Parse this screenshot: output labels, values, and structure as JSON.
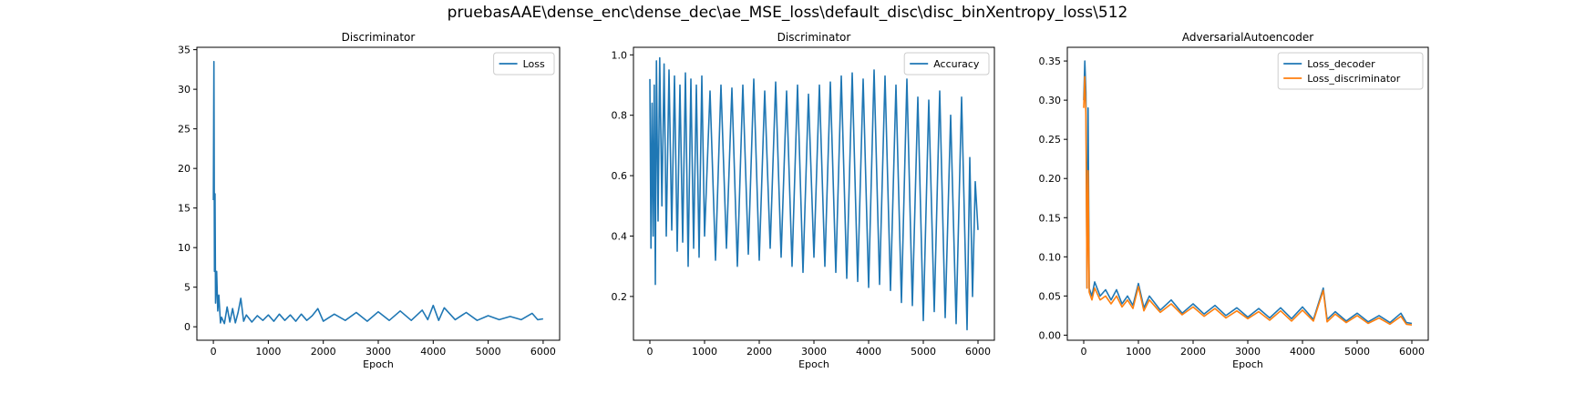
{
  "figure": {
    "suptitle": "pruebasAAE\\dense_enc\\dense_dec\\ae_MSE_loss\\default_disc\\disc_binXentropy_loss\\512"
  },
  "colors": {
    "series_blue": "#1f77b4",
    "series_orange": "#ff7f0e",
    "axes": "#000000",
    "legend_border": "#cccccc"
  },
  "chart_data": [
    {
      "type": "line",
      "title": "Discriminator",
      "xlabel": "Epoch",
      "ylabel": "",
      "xlim": [
        -300,
        6300
      ],
      "ylim": [
        -1.7,
        35.3
      ],
      "xticks": [
        0,
        1000,
        2000,
        3000,
        4000,
        5000,
        6000
      ],
      "yticks": [
        0,
        5,
        10,
        15,
        20,
        25,
        30,
        35
      ],
      "legend": "top-right",
      "grid": false,
      "series": [
        {
          "name": "Loss",
          "color": "#1f77b4",
          "points": [
            [
              0,
              16
            ],
            [
              10,
              33.5
            ],
            [
              20,
              7
            ],
            [
              30,
              16.8
            ],
            [
              40,
              3
            ],
            [
              60,
              7
            ],
            [
              80,
              2
            ],
            [
              100,
              4
            ],
            [
              130,
              0.5
            ],
            [
              150,
              1.2
            ],
            [
              200,
              0.4
            ],
            [
              250,
              2.5
            ],
            [
              300,
              0.6
            ],
            [
              350,
              2.3
            ],
            [
              400,
              0.5
            ],
            [
              450,
              1.8
            ],
            [
              500,
              3.6
            ],
            [
              550,
              0.7
            ],
            [
              600,
              1.5
            ],
            [
              700,
              0.6
            ],
            [
              800,
              1.4
            ],
            [
              900,
              0.8
            ],
            [
              1000,
              1.5
            ],
            [
              1100,
              0.7
            ],
            [
              1200,
              1.6
            ],
            [
              1300,
              0.8
            ],
            [
              1400,
              1.5
            ],
            [
              1500,
              0.7
            ],
            [
              1600,
              1.6
            ],
            [
              1700,
              0.8
            ],
            [
              1800,
              1.4
            ],
            [
              1900,
              2.3
            ],
            [
              2000,
              0.7
            ],
            [
              2200,
              1.6
            ],
            [
              2400,
              0.8
            ],
            [
              2600,
              1.8
            ],
            [
              2800,
              0.7
            ],
            [
              3000,
              1.9
            ],
            [
              3200,
              0.8
            ],
            [
              3400,
              2
            ],
            [
              3600,
              0.8
            ],
            [
              3800,
              2.1
            ],
            [
              3900,
              0.9
            ],
            [
              4000,
              2.7
            ],
            [
              4100,
              0.8
            ],
            [
              4200,
              2.4
            ],
            [
              4400,
              0.9
            ],
            [
              4600,
              1.8
            ],
            [
              4800,
              0.8
            ],
            [
              5000,
              1.4
            ],
            [
              5200,
              0.9
            ],
            [
              5400,
              1.3
            ],
            [
              5600,
              0.9
            ],
            [
              5800,
              1.7
            ],
            [
              5900,
              0.9
            ],
            [
              6000,
              1
            ]
          ]
        }
      ]
    },
    {
      "type": "line",
      "title": "Discriminator",
      "xlabel": "Epoch",
      "ylabel": "",
      "xlim": [
        -300,
        6300
      ],
      "ylim": [
        0.055,
        1.025
      ],
      "xticks": [
        0,
        1000,
        2000,
        3000,
        4000,
        5000,
        6000
      ],
      "yticks": [
        0.2,
        0.4,
        0.6,
        0.8,
        1.0
      ],
      "legend": "top-right",
      "grid": false,
      "series": [
        {
          "name": "Accuracy",
          "color": "#1f77b4",
          "points": [
            [
              0,
              0.92
            ],
            [
              20,
              0.36
            ],
            [
              40,
              0.84
            ],
            [
              60,
              0.4
            ],
            [
              80,
              0.9
            ],
            [
              100,
              0.24
            ],
            [
              120,
              0.98
            ],
            [
              150,
              0.45
            ],
            [
              180,
              0.99
            ],
            [
              220,
              0.5
            ],
            [
              260,
              0.97
            ],
            [
              300,
              0.4
            ],
            [
              350,
              0.95
            ],
            [
              400,
              0.42
            ],
            [
              450,
              0.93
            ],
            [
              500,
              0.35
            ],
            [
              550,
              0.9
            ],
            [
              600,
              0.38
            ],
            [
              650,
              0.94
            ],
            [
              700,
              0.3
            ],
            [
              750,
              0.92
            ],
            [
              800,
              0.36
            ],
            [
              850,
              0.9
            ],
            [
              900,
              0.33
            ],
            [
              950,
              0.93
            ],
            [
              1000,
              0.4
            ],
            [
              1100,
              0.88
            ],
            [
              1200,
              0.32
            ],
            [
              1300,
              0.9
            ],
            [
              1400,
              0.36
            ],
            [
              1500,
              0.89
            ],
            [
              1600,
              0.3
            ],
            [
              1700,
              0.9
            ],
            [
              1800,
              0.34
            ],
            [
              1900,
              0.92
            ],
            [
              2000,
              0.32
            ],
            [
              2100,
              0.88
            ],
            [
              2200,
              0.36
            ],
            [
              2300,
              0.91
            ],
            [
              2400,
              0.33
            ],
            [
              2500,
              0.88
            ],
            [
              2600,
              0.3
            ],
            [
              2700,
              0.9
            ],
            [
              2800,
              0.28
            ],
            [
              2900,
              0.87
            ],
            [
              3000,
              0.33
            ],
            [
              3100,
              0.9
            ],
            [
              3200,
              0.3
            ],
            [
              3300,
              0.91
            ],
            [
              3400,
              0.28
            ],
            [
              3500,
              0.93
            ],
            [
              3600,
              0.26
            ],
            [
              3700,
              0.94
            ],
            [
              3800,
              0.25
            ],
            [
              3900,
              0.92
            ],
            [
              4000,
              0.23
            ],
            [
              4100,
              0.95
            ],
            [
              4200,
              0.24
            ],
            [
              4300,
              0.93
            ],
            [
              4400,
              0.22
            ],
            [
              4500,
              0.9
            ],
            [
              4600,
              0.18
            ],
            [
              4700,
              0.92
            ],
            [
              4800,
              0.17
            ],
            [
              4900,
              0.86
            ],
            [
              5000,
              0.12
            ],
            [
              5100,
              0.85
            ],
            [
              5200,
              0.15
            ],
            [
              5300,
              0.88
            ],
            [
              5400,
              0.13
            ],
            [
              5500,
              0.8
            ],
            [
              5600,
              0.11
            ],
            [
              5700,
              0.86
            ],
            [
              5800,
              0.09
            ],
            [
              5850,
              0.66
            ],
            [
              5900,
              0.2
            ],
            [
              5950,
              0.58
            ],
            [
              6000,
              0.42
            ]
          ]
        }
      ]
    },
    {
      "type": "line",
      "title": "AdversarialAutoencoder",
      "xlabel": "Epoch",
      "ylabel": "",
      "xlim": [
        -300,
        6300
      ],
      "ylim": [
        -0.0065,
        0.3675
      ],
      "xticks": [
        0,
        1000,
        2000,
        3000,
        4000,
        5000,
        6000
      ],
      "yticks": [
        0.0,
        0.05,
        0.1,
        0.15,
        0.2,
        0.25,
        0.3,
        0.35
      ],
      "legend": "top-right",
      "grid": false,
      "series": [
        {
          "name": "Loss_decoder",
          "color": "#1f77b4",
          "points": [
            [
              0,
              0.3
            ],
            [
              20,
              0.35
            ],
            [
              40,
              0.31
            ],
            [
              60,
              0.06
            ],
            [
              80,
              0.29
            ],
            [
              100,
              0.06
            ],
            [
              150,
              0.05
            ],
            [
              200,
              0.068
            ],
            [
              300,
              0.05
            ],
            [
              400,
              0.058
            ],
            [
              500,
              0.045
            ],
            [
              600,
              0.058
            ],
            [
              700,
              0.04
            ],
            [
              800,
              0.05
            ],
            [
              900,
              0.038
            ],
            [
              1000,
              0.066
            ],
            [
              1100,
              0.035
            ],
            [
              1200,
              0.05
            ],
            [
              1400,
              0.032
            ],
            [
              1600,
              0.045
            ],
            [
              1800,
              0.028
            ],
            [
              2000,
              0.04
            ],
            [
              2200,
              0.027
            ],
            [
              2400,
              0.038
            ],
            [
              2600,
              0.025
            ],
            [
              2800,
              0.035
            ],
            [
              3000,
              0.023
            ],
            [
              3200,
              0.034
            ],
            [
              3400,
              0.022
            ],
            [
              3600,
              0.035
            ],
            [
              3800,
              0.021
            ],
            [
              4000,
              0.036
            ],
            [
              4200,
              0.02
            ],
            [
              4380,
              0.06
            ],
            [
              4450,
              0.02
            ],
            [
              4600,
              0.03
            ],
            [
              4800,
              0.018
            ],
            [
              5000,
              0.028
            ],
            [
              5200,
              0.017
            ],
            [
              5400,
              0.025
            ],
            [
              5600,
              0.016
            ],
            [
              5800,
              0.028
            ],
            [
              5900,
              0.016
            ],
            [
              6000,
              0.015
            ]
          ]
        },
        {
          "name": "Loss_discriminator",
          "color": "#ff7f0e",
          "points": [
            [
              0,
              0.29
            ],
            [
              20,
              0.33
            ],
            [
              40,
              0.28
            ],
            [
              60,
              0.06
            ],
            [
              80,
              0.21
            ],
            [
              100,
              0.055
            ],
            [
              150,
              0.045
            ],
            [
              200,
              0.06
            ],
            [
              300,
              0.045
            ],
            [
              400,
              0.05
            ],
            [
              500,
              0.04
            ],
            [
              600,
              0.05
            ],
            [
              700,
              0.036
            ],
            [
              800,
              0.045
            ],
            [
              900,
              0.034
            ],
            [
              1000,
              0.062
            ],
            [
              1100,
              0.031
            ],
            [
              1200,
              0.045
            ],
            [
              1400,
              0.029
            ],
            [
              1600,
              0.04
            ],
            [
              1800,
              0.026
            ],
            [
              2000,
              0.036
            ],
            [
              2200,
              0.024
            ],
            [
              2400,
              0.034
            ],
            [
              2600,
              0.022
            ],
            [
              2800,
              0.031
            ],
            [
              3000,
              0.021
            ],
            [
              3200,
              0.03
            ],
            [
              3400,
              0.019
            ],
            [
              3600,
              0.031
            ],
            [
              3800,
              0.018
            ],
            [
              4000,
              0.032
            ],
            [
              4200,
              0.018
            ],
            [
              4380,
              0.057
            ],
            [
              4450,
              0.017
            ],
            [
              4600,
              0.027
            ],
            [
              4800,
              0.016
            ],
            [
              5000,
              0.025
            ],
            [
              5200,
              0.015
            ],
            [
              5400,
              0.022
            ],
            [
              5600,
              0.014
            ],
            [
              5800,
              0.024
            ],
            [
              5900,
              0.014
            ],
            [
              6000,
              0.013
            ]
          ]
        }
      ]
    }
  ]
}
